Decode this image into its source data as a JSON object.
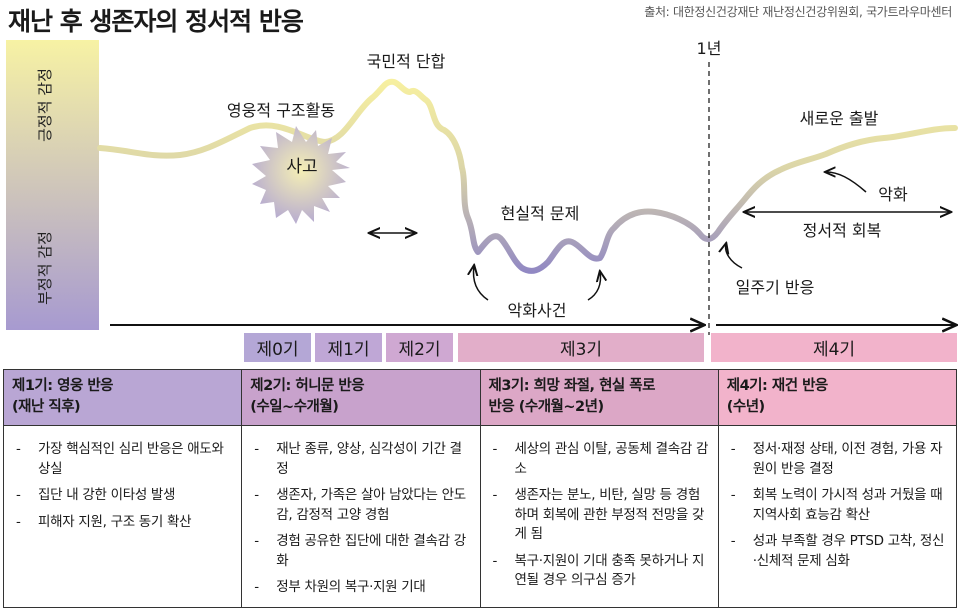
{
  "header": {
    "title": "재난 후 생존자의 정서적 반응",
    "source": "출처: 대한정신건강재단 재난정신건강위원회, 국가트라우마센터"
  },
  "axis": {
    "positive": "긍정적 감정",
    "negative": "부정적 감정"
  },
  "curve_labels": {
    "accident": "사고",
    "heroic": "영웅적 구조활동",
    "unity": "국민적 단합",
    "reality": "현실적 문제",
    "worsening_event": "악화사건",
    "one_year": "1년",
    "anniversary": "일주기 반응",
    "new_start": "새로운 출발",
    "worsen": "악화",
    "recovery": "정서적 회복"
  },
  "colors": {
    "positive": "#f7f2a4",
    "negative": "#a79ad0",
    "phase_purple": "#b4a7d6",
    "phase_pink": "#e2aec9",
    "phase_pink_light": "#f0b2cc"
  },
  "phases": [
    "제0기",
    "제1기",
    "제2기",
    "제3기",
    "제4기"
  ],
  "table": [
    {
      "heading": [
        "제1기: 영웅 반응",
        "(재난 직후)"
      ],
      "color": "#b9a6d4",
      "bullets": [
        "가장 핵심적인 심리 반응은 애도와 상실",
        "집단 내 강한 이타성 발생",
        "피해자 지원, 구조 동기 확산"
      ]
    },
    {
      "heading": [
        "제2기: 허니문 반응",
        "(수일~수개월)"
      ],
      "color": "#c8a2cc",
      "bullets": [
        "재난 종류, 양상, 심각성이 기간 결정",
        "생존자, 가족은 살아 남았다는 안도감, 감정적 고양 경험",
        "경험 공유한 집단에 대한 결속감 강화",
        "정부 차원의 복구·지원 기대"
      ]
    },
    {
      "heading": [
        "제3기: 희망 좌절, 현실 폭로",
        "반응 (수개월~2년)"
      ],
      "color": "#dca7c6",
      "bullets": [
        "세상의 관심 이탈, 공동체 결속감 감소",
        "생존자는 분노, 비탄, 실망 등 경험하며 회복에 관한 부정적 전망을 갖게 됨",
        "복구·지원이 기대 충족 못하거나 지연될 경우 의구심 증가"
      ]
    },
    {
      "heading": [
        "제4기: 재건 반응",
        "(수년)"
      ],
      "color": "#f2b3cb",
      "bullets": [
        "정서·재정 상태, 이전 경험, 가용 자원이 반응 결정",
        "회복 노력이 가시적 성과 거뒀을 때 지역사회 효능감 확산",
        "성과 부족할 경우 PTSD 고착, 정신·신체적 문제 심화"
      ]
    }
  ]
}
